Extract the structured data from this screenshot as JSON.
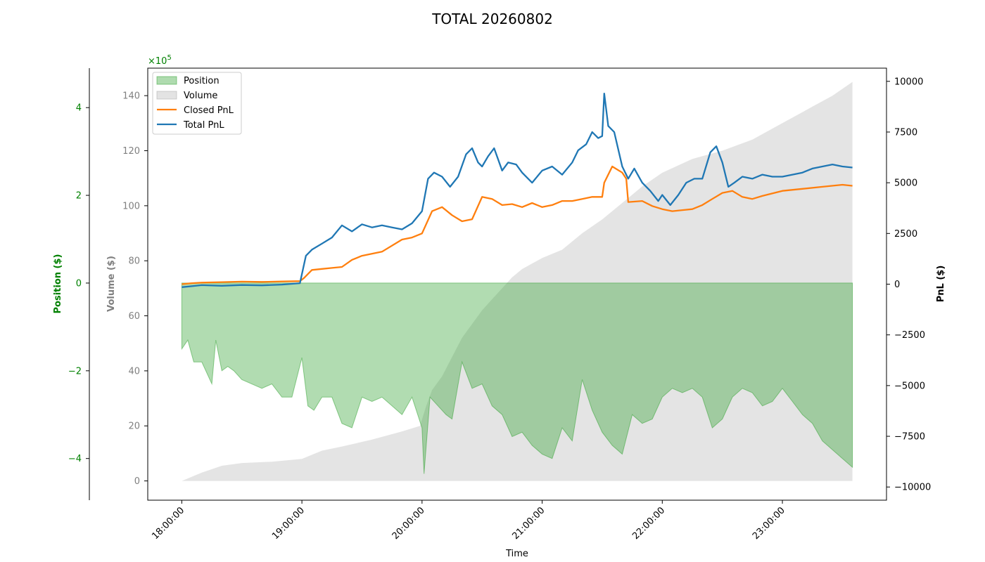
{
  "chart_data": {
    "type": "line",
    "title": "TOTAL 20260802",
    "xlabel": "Time",
    "x_ticks": [
      "18:00:00",
      "19:00:00",
      "20:00:00",
      "21:00:00",
      "22:00:00",
      "23:00:00"
    ],
    "x_range": [
      "17:43:00",
      "23:52:00"
    ],
    "axes": {
      "position": {
        "label": "Position ($)",
        "multiplier": "×10^5",
        "ticks": [
          4,
          2,
          0,
          -2,
          -4
        ],
        "range": [
          -4.95,
          4.9
        ],
        "color": "#008000",
        "side": "far-left"
      },
      "volume": {
        "label": "Volume ($)",
        "ticks": [
          140,
          120,
          100,
          80,
          60,
          40,
          20,
          0
        ],
        "range": [
          -7,
          150
        ],
        "color": "#808080",
        "side": "left"
      },
      "pnl": {
        "label": "PnL ($)",
        "ticks": [
          10000,
          7500,
          5000,
          2500,
          0,
          -2500,
          -5000,
          -7500,
          -10000
        ],
        "range": [
          -10650,
          10650
        ],
        "color": "#000000",
        "side": "right"
      }
    },
    "legend": {
      "placement": "top-left",
      "entries": [
        "Position",
        "Volume",
        "Closed PnL",
        "Total PnL"
      ]
    },
    "colors": {
      "position": "#2ca02c",
      "volume": "#b0b0b0",
      "closed_pnl": "#ff7f0e",
      "total_pnl": "#1f77b4",
      "multiplier": "#008000"
    },
    "series": [
      {
        "name": "Position",
        "axis": "position",
        "kind": "area",
        "x": [
          "18:00",
          "18:03",
          "18:06",
          "18:10",
          "18:15",
          "18:17",
          "18:20",
          "18:23",
          "18:26",
          "18:30",
          "18:40",
          "18:45",
          "18:50",
          "18:55",
          "19:00",
          "19:03",
          "19:06",
          "19:10",
          "19:15",
          "19:20",
          "19:25",
          "19:30",
          "19:35",
          "19:40",
          "19:45",
          "19:50",
          "19:55",
          "20:00",
          "20:01",
          "20:04",
          "20:08",
          "20:12",
          "20:15",
          "20:20",
          "20:25",
          "20:30",
          "20:35",
          "20:40",
          "20:45",
          "20:50",
          "20:55",
          "21:00",
          "21:05",
          "21:10",
          "21:15",
          "21:20",
          "21:25",
          "21:30",
          "21:35",
          "21:40",
          "21:45",
          "21:50",
          "21:55",
          "22:00",
          "22:05",
          "22:10",
          "22:15",
          "22:20",
          "22:25",
          "22:30",
          "22:35",
          "22:40",
          "22:45",
          "22:50",
          "22:55",
          "23:00",
          "23:05",
          "23:10",
          "23:15",
          "23:20",
          "23:25",
          "23:30",
          "23:35"
        ],
        "y": [
          -1.5,
          -1.3,
          -1.8,
          -1.8,
          -2.3,
          -1.3,
          -2.0,
          -1.9,
          -2.0,
          -2.2,
          -2.4,
          -2.3,
          -2.6,
          -2.6,
          -1.7,
          -2.8,
          -2.9,
          -2.6,
          -2.6,
          -3.2,
          -3.3,
          -2.6,
          -2.7,
          -2.6,
          -2.8,
          -3.0,
          -2.6,
          -3.3,
          -4.35,
          -2.6,
          -2.8,
          -3.0,
          -3.1,
          -1.8,
          -2.4,
          -2.3,
          -2.8,
          -3.0,
          -3.5,
          -3.4,
          -3.7,
          -3.9,
          -4.0,
          -3.3,
          -3.6,
          -2.2,
          -2.9,
          -3.4,
          -3.7,
          -3.9,
          -3.0,
          -3.2,
          -3.1,
          -2.6,
          -2.4,
          -2.5,
          -2.4,
          -2.6,
          -3.3,
          -3.1,
          -2.6,
          -2.4,
          -2.5,
          -2.8,
          -2.7,
          -2.4,
          -2.7,
          -3.0,
          -3.2,
          -3.6,
          -3.8,
          -4.0,
          -4.2
        ]
      },
      {
        "name": "Volume",
        "axis": "volume",
        "kind": "area",
        "x": [
          "18:00",
          "18:10",
          "18:20",
          "18:30",
          "18:45",
          "19:00",
          "19:10",
          "19:20",
          "19:35",
          "19:50",
          "19:59",
          "20:02",
          "20:05",
          "20:10",
          "20:15",
          "20:20",
          "20:25",
          "20:30",
          "20:35",
          "20:40",
          "20:45",
          "20:50",
          "20:55",
          "21:00",
          "21:10",
          "21:20",
          "21:30",
          "21:40",
          "21:50",
          "22:00",
          "22:15",
          "22:30",
          "22:45",
          "23:00",
          "23:15",
          "23:25",
          "23:35"
        ],
        "y": [
          0,
          3,
          5.5,
          6.5,
          7,
          8,
          11,
          12.5,
          15,
          18,
          20,
          27,
          33,
          38,
          45,
          52,
          57,
          62,
          66,
          70,
          74,
          77,
          79,
          81,
          84,
          90,
          95,
          101,
          107,
          112,
          117,
          120,
          124,
          130,
          136,
          140,
          145
        ]
      },
      {
        "name": "Closed PnL",
        "axis": "pnl",
        "kind": "line",
        "x": [
          "18:00",
          "18:05",
          "18:10",
          "18:20",
          "18:30",
          "18:40",
          "18:50",
          "18:59",
          "19:01",
          "19:05",
          "19:10",
          "19:15",
          "19:20",
          "19:25",
          "19:30",
          "19:40",
          "19:50",
          "19:55",
          "20:00",
          "20:05",
          "20:10",
          "20:15",
          "20:20",
          "20:25",
          "20:30",
          "20:35",
          "20:40",
          "20:45",
          "20:50",
          "20:55",
          "21:00",
          "21:05",
          "21:10",
          "21:15",
          "21:20",
          "21:25",
          "21:30",
          "21:31",
          "21:35",
          "21:40",
          "21:42",
          "21:43",
          "21:50",
          "21:55",
          "22:00",
          "22:05",
          "22:10",
          "22:15",
          "22:20",
          "22:25",
          "22:30",
          "22:35",
          "22:40",
          "22:45",
          "22:50",
          "23:00",
          "23:10",
          "23:20",
          "23:30",
          "23:35"
        ],
        "y": [
          0,
          50,
          75,
          100,
          125,
          110,
          130,
          150,
          300,
          700,
          750,
          800,
          850,
          1200,
          1400,
          1600,
          2200,
          2300,
          2500,
          3600,
          3800,
          3400,
          3100,
          3200,
          4300,
          4200,
          3900,
          3950,
          3800,
          4000,
          3800,
          3900,
          4100,
          4100,
          4200,
          4300,
          4300,
          5000,
          5800,
          5500,
          5200,
          4050,
          4100,
          3850,
          3700,
          3600,
          3650,
          3700,
          3900,
          4200,
          4500,
          4600,
          4300,
          4200,
          4350,
          4600,
          4700,
          4800,
          4900,
          4850
        ]
      },
      {
        "name": "Total PnL",
        "axis": "pnl",
        "kind": "line",
        "x": [
          "18:00",
          "18:05",
          "18:10",
          "18:20",
          "18:30",
          "18:40",
          "18:50",
          "18:59",
          "19:02",
          "19:05",
          "19:10",
          "19:15",
          "19:20",
          "19:25",
          "19:30",
          "19:35",
          "19:40",
          "19:45",
          "19:50",
          "19:55",
          "20:00",
          "20:03",
          "20:06",
          "20:10",
          "20:14",
          "20:18",
          "20:22",
          "20:25",
          "20:28",
          "20:30",
          "20:33",
          "20:36",
          "20:40",
          "20:43",
          "20:47",
          "20:50",
          "20:55",
          "21:00",
          "21:05",
          "21:10",
          "21:15",
          "21:18",
          "21:22",
          "21:25",
          "21:28",
          "21:30",
          "21:31",
          "21:33",
          "21:36",
          "21:40",
          "21:43",
          "21:46",
          "21:50",
          "21:54",
          "21:58",
          "22:00",
          "22:04",
          "22:08",
          "22:12",
          "22:16",
          "22:20",
          "22:24",
          "22:27",
          "22:30",
          "22:33",
          "22:36",
          "22:40",
          "22:45",
          "22:50",
          "22:55",
          "23:00",
          "23:05",
          "23:10",
          "23:15",
          "23:20",
          "23:25",
          "23:30",
          "23:35"
        ],
        "y": [
          -150,
          -100,
          -50,
          -80,
          -40,
          -60,
          -20,
          50,
          1400,
          1700,
          2000,
          2300,
          2900,
          2600,
          2950,
          2800,
          2900,
          2800,
          2700,
          3000,
          3600,
          5200,
          5500,
          5300,
          4800,
          5300,
          6400,
          6700,
          6000,
          5800,
          6300,
          6700,
          5600,
          6000,
          5900,
          5500,
          5000,
          5600,
          5800,
          5400,
          6000,
          6600,
          6900,
          7500,
          7200,
          7300,
          9400,
          7800,
          7500,
          5800,
          5200,
          5700,
          5000,
          4600,
          4100,
          4400,
          3900,
          4400,
          5000,
          5200,
          5200,
          6500,
          6800,
          6000,
          4800,
          5000,
          5300,
          5200,
          5400,
          5300,
          5300,
          5400,
          5500,
          5700,
          5800,
          5900,
          5800,
          5750
        ]
      }
    ]
  }
}
